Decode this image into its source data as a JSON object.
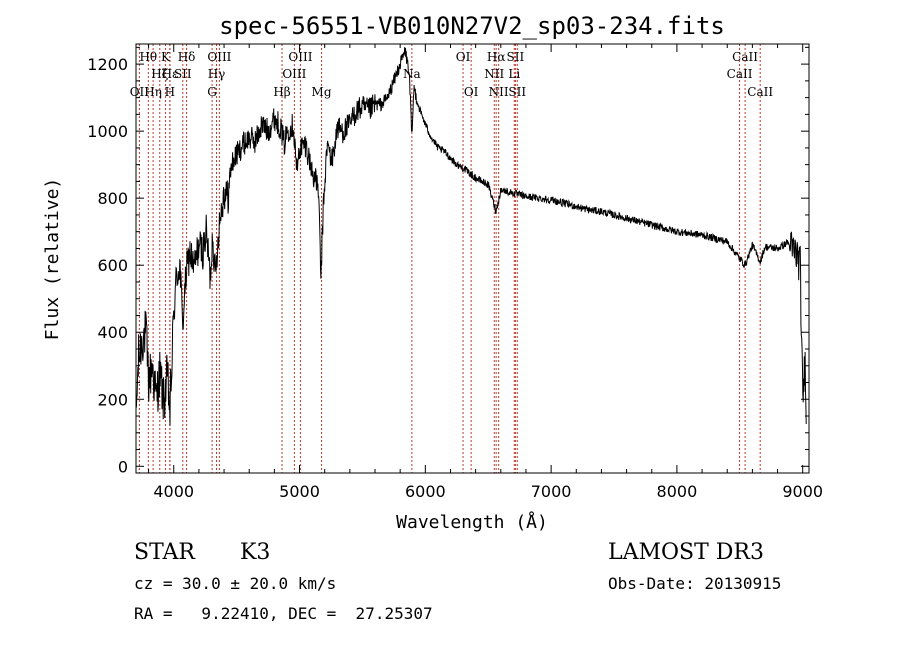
{
  "chart_data": {
    "type": "line",
    "title": "spec-56551-VB010N27V2_sp03-234.fits",
    "xlabel": "Wavelength (Å)",
    "ylabel": "Flux (relative)",
    "xlim": [
      3700,
      9050
    ],
    "ylim": [
      -20,
      1260
    ],
    "xticks": [
      4000,
      5000,
      6000,
      7000,
      8000,
      9000
    ],
    "yticks": [
      0,
      200,
      400,
      600,
      800,
      1000,
      1200
    ],
    "spectrum_anchors": [
      [
        3700,
        150
      ],
      [
        3720,
        320
      ],
      [
        3750,
        380
      ],
      [
        3780,
        400
      ],
      [
        3800,
        250
      ],
      [
        3830,
        300
      ],
      [
        3860,
        200
      ],
      [
        3890,
        280
      ],
      [
        3920,
        190
      ],
      [
        3950,
        270
      ],
      [
        3970,
        160
      ],
      [
        4000,
        450
      ],
      [
        4020,
        560
      ],
      [
        4050,
        600
      ],
      [
        4070,
        420
      ],
      [
        4100,
        580
      ],
      [
        4130,
        640
      ],
      [
        4160,
        590
      ],
      [
        4200,
        660
      ],
      [
        4230,
        640
      ],
      [
        4260,
        700
      ],
      [
        4290,
        560
      ],
      [
        4310,
        700
      ],
      [
        4330,
        560
      ],
      [
        4360,
        720
      ],
      [
        4400,
        820
      ],
      [
        4430,
        800
      ],
      [
        4460,
        900
      ],
      [
        4500,
        930
      ],
      [
        4550,
        960
      ],
      [
        4600,
        980
      ],
      [
        4650,
        970
      ],
      [
        4700,
        1020
      ],
      [
        4750,
        1000
      ],
      [
        4800,
        1040
      ],
      [
        4850,
        1010
      ],
      [
        4880,
        960
      ],
      [
        4900,
        1000
      ],
      [
        4950,
        1020
      ],
      [
        4980,
        880
      ],
      [
        5000,
        950
      ],
      [
        5050,
        960
      ],
      [
        5100,
        880
      ],
      [
        5150,
        830
      ],
      [
        5170,
        560
      ],
      [
        5190,
        780
      ],
      [
        5220,
        960
      ],
      [
        5260,
        910
      ],
      [
        5300,
        1010
      ],
      [
        5350,
        1000
      ],
      [
        5400,
        1020
      ],
      [
        5450,
        1060
      ],
      [
        5500,
        1070
      ],
      [
        5550,
        1060
      ],
      [
        5600,
        1080
      ],
      [
        5650,
        1080
      ],
      [
        5700,
        1100
      ],
      [
        5750,
        1150
      ],
      [
        5800,
        1200
      ],
      [
        5840,
        1240
      ],
      [
        5870,
        1180
      ],
      [
        5893,
        1000
      ],
      [
        5910,
        1130
      ],
      [
        5950,
        1070
      ],
      [
        6000,
        1020
      ],
      [
        6050,
        980
      ],
      [
        6100,
        950
      ],
      [
        6150,
        940
      ],
      [
        6200,
        920
      ],
      [
        6250,
        900
      ],
      [
        6300,
        890
      ],
      [
        6400,
        860
      ],
      [
        6500,
        840
      ],
      [
        6563,
        760
      ],
      [
        6600,
        825
      ],
      [
        6700,
        815
      ],
      [
        6800,
        805
      ],
      [
        6900,
        800
      ],
      [
        7000,
        795
      ],
      [
        7100,
        785
      ],
      [
        7200,
        775
      ],
      [
        7300,
        765
      ],
      [
        7400,
        760
      ],
      [
        7500,
        750
      ],
      [
        7600,
        740
      ],
      [
        7700,
        730
      ],
      [
        7800,
        720
      ],
      [
        7900,
        710
      ],
      [
        8000,
        700
      ],
      [
        8100,
        695
      ],
      [
        8200,
        690
      ],
      [
        8300,
        680
      ],
      [
        8400,
        670
      ],
      [
        8498,
        620
      ],
      [
        8542,
        600
      ],
      [
        8600,
        660
      ],
      [
        8662,
        610
      ],
      [
        8700,
        655
      ],
      [
        8800,
        650
      ],
      [
        8850,
        660
      ],
      [
        8880,
        670
      ],
      [
        8900,
        650
      ],
      [
        8950,
        635
      ],
      [
        8980,
        600
      ],
      [
        9000,
        200
      ],
      [
        9020,
        320
      ],
      [
        9030,
        140
      ]
    ],
    "lines": [
      {
        "name": "OII",
        "wavelength": 3727,
        "row": 2
      },
      {
        "name": "Hθ",
        "wavelength": 3798,
        "row": 0
      },
      {
        "name": "Hη",
        "wavelength": 3836,
        "row": 2
      },
      {
        "name": "Hζ",
        "wavelength": 3889,
        "row": 1
      },
      {
        "name": "K",
        "wavelength": 3934,
        "row": 0
      },
      {
        "name": "Hε",
        "wavelength": 3970,
        "row": 1
      },
      {
        "name": "H",
        "wavelength": 3969,
        "row": 2
      },
      {
        "name": "SII",
        "wavelength": 4072,
        "row": 1
      },
      {
        "name": "Hδ",
        "wavelength": 4102,
        "row": 0
      },
      {
        "name": "G",
        "wavelength": 4305,
        "row": 2
      },
      {
        "name": "Hγ",
        "wavelength": 4340,
        "row": 1
      },
      {
        "name": "OIII",
        "wavelength": 4363,
        "row": 0
      },
      {
        "name": "Hβ",
        "wavelength": 4861,
        "row": 2
      },
      {
        "name": "OIII",
        "wavelength": 4959,
        "row": 1
      },
      {
        "name": "OIII",
        "wavelength": 5007,
        "row": 0
      },
      {
        "name": "Mg",
        "wavelength": 5175,
        "row": 2
      },
      {
        "name": "Na",
        "wavelength": 5893,
        "row": 1
      },
      {
        "name": "OI",
        "wavelength": 6300,
        "row": 0
      },
      {
        "name": "OI",
        "wavelength": 6364,
        "row": 2
      },
      {
        "name": "NII",
        "wavelength": 6548,
        "row": 1
      },
      {
        "name": "Hα",
        "wavelength": 6563,
        "row": 0
      },
      {
        "name": "NII",
        "wavelength": 6583,
        "row": 2
      },
      {
        "name": "Li",
        "wavelength": 6707,
        "row": 1
      },
      {
        "name": "SII",
        "wavelength": 6716,
        "row": 0
      },
      {
        "name": "SII",
        "wavelength": 6731,
        "row": 2
      },
      {
        "name": "CaII",
        "wavelength": 8498,
        "row": 1
      },
      {
        "name": "CaII",
        "wavelength": 8542,
        "row": 0
      },
      {
        "name": "CaII",
        "wavelength": 8662,
        "row": 2
      }
    ]
  },
  "info": {
    "class": "STAR",
    "subclass": "K3",
    "survey": "LAMOST DR3",
    "redshift": "cz = 30.0 ± 20.0 km/s",
    "obs_date": "Obs-Date: 20130915",
    "coords": "RA =   9.22410, DEC =  27.25307"
  },
  "colors": {
    "line_marker": "#c0392b",
    "spectrum": "#000000",
    "axis": "#000000"
  }
}
